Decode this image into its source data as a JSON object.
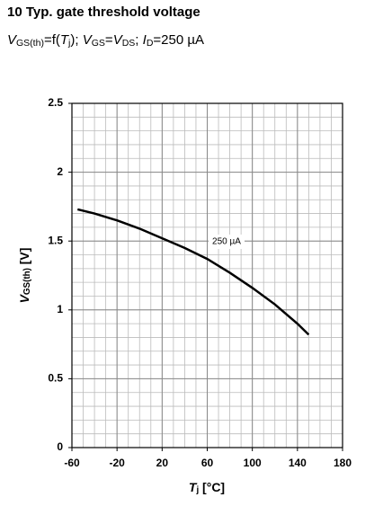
{
  "chart_data": {
    "type": "line",
    "title": "10 Typ. gate threshold voltage",
    "subtitle": [
      {
        "text": "V",
        "style": "italic"
      },
      {
        "text": "GS(th)",
        "style": "sub"
      },
      {
        "text": "=f(",
        "style": "normal"
      },
      {
        "text": "T",
        "style": "italic"
      },
      {
        "text": "j",
        "style": "sub"
      },
      {
        "text": "); ",
        "style": "normal"
      },
      {
        "text": "V",
        "style": "italic"
      },
      {
        "text": "GS",
        "style": "sub"
      },
      {
        "text": "=",
        "style": "normal"
      },
      {
        "text": "V",
        "style": "italic"
      },
      {
        "text": "DS",
        "style": "sub"
      },
      {
        "text": "; ",
        "style": "normal"
      },
      {
        "text": "I",
        "style": "italic"
      },
      {
        "text": "D",
        "style": "sub"
      },
      {
        "text": "=250 µA",
        "style": "normal"
      }
    ],
    "x_label": [
      {
        "text": "T",
        "style": "italic"
      },
      {
        "text": "j",
        "style": "sub"
      },
      {
        "text": " [°C]",
        "style": "normal"
      }
    ],
    "y_label": [
      {
        "text": "V",
        "style": "italic"
      },
      {
        "text": "GS(th)",
        "style": "sub"
      },
      {
        "text": " [V]",
        "style": "normal"
      }
    ],
    "annotation": "250 µA",
    "x": [
      -55,
      -40,
      -20,
      0,
      20,
      40,
      60,
      80,
      100,
      120,
      140,
      150
    ],
    "series": [
      {
        "name": "250 µA",
        "color": "#000000",
        "values": [
          1.73,
          1.7,
          1.65,
          1.59,
          1.52,
          1.45,
          1.37,
          1.27,
          1.16,
          1.04,
          0.9,
          0.82
        ]
      }
    ],
    "xlim": [
      -60,
      180
    ],
    "xticks": [
      -60,
      -20,
      20,
      60,
      100,
      140,
      180
    ],
    "ylim": [
      0,
      2.5
    ],
    "yticks": [
      0,
      0.5,
      1,
      1.5,
      2,
      2.5
    ],
    "grid": true
  }
}
